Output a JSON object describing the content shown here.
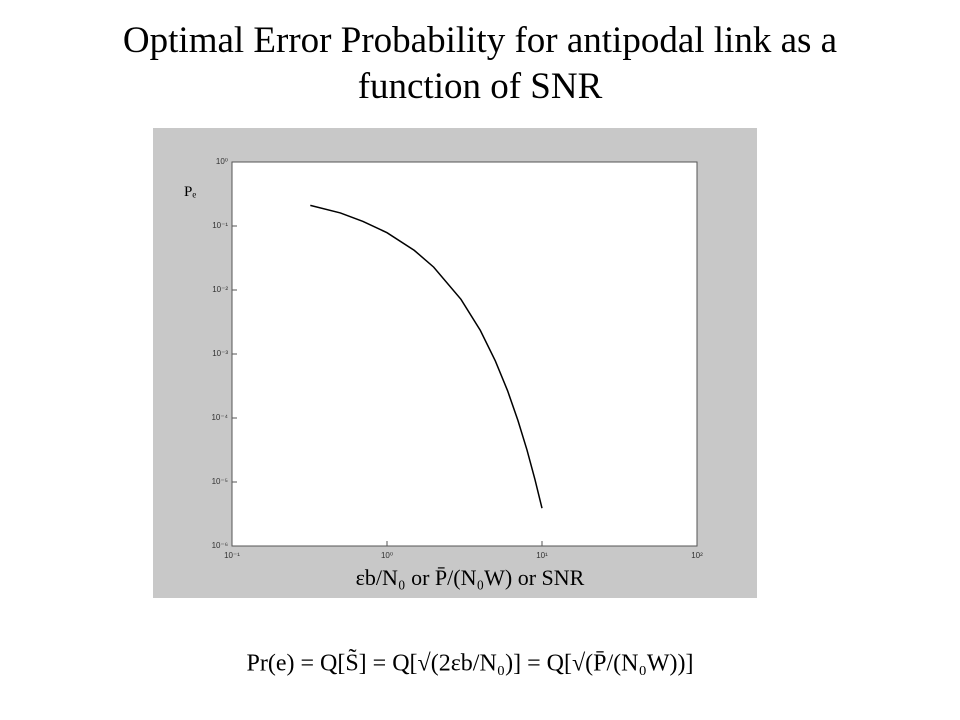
{
  "chart_data": {
    "type": "line",
    "title": "Optimal Error Probability for antipodal link as a function of SNR",
    "x_label": "εb/N₀    or    P̄/(N₀W)    or    SNR",
    "y_label": "Pₑ",
    "annotation": "Pr(e) = Q[S̃] = Q[√(2εb/N₀)] = Q[√(P̄/(N₀W))]",
    "x": [
      0.32,
      0.5,
      0.7,
      1,
      1.5,
      2,
      3,
      4,
      5,
      6,
      7,
      8,
      9,
      10
    ],
    "series": [
      {
        "name": "Pe",
        "color": "#000000",
        "values": [
          0.21,
          0.16,
          0.118,
          0.0786,
          0.0416,
          0.0228,
          0.00715,
          0.00234,
          0.00078,
          0.000266,
          9.1e-05,
          3.17e-05,
          1.1e-05,
          3.9e-06
        ]
      }
    ],
    "xscale": "log",
    "yscale": "log",
    "xlim": [
      0.1,
      100
    ],
    "ylim": [
      1e-06,
      1
    ],
    "xticks": [
      {
        "value": 0.1,
        "label": "10⁻¹"
      },
      {
        "value": 1,
        "label": "10⁰"
      },
      {
        "value": 10,
        "label": "10¹"
      },
      {
        "value": 100,
        "label": "10²"
      }
    ],
    "yticks": [
      {
        "value": 1,
        "label": "10⁰"
      },
      {
        "value": 0.1,
        "label": "10⁻¹"
      },
      {
        "value": 0.01,
        "label": "10⁻²"
      },
      {
        "value": 0.001,
        "label": "10⁻³"
      },
      {
        "value": 0.0001,
        "label": "10⁻⁴"
      },
      {
        "value": 1e-05,
        "label": "10⁻⁵"
      },
      {
        "value": 1e-06,
        "label": "10⁻⁶"
      }
    ]
  }
}
